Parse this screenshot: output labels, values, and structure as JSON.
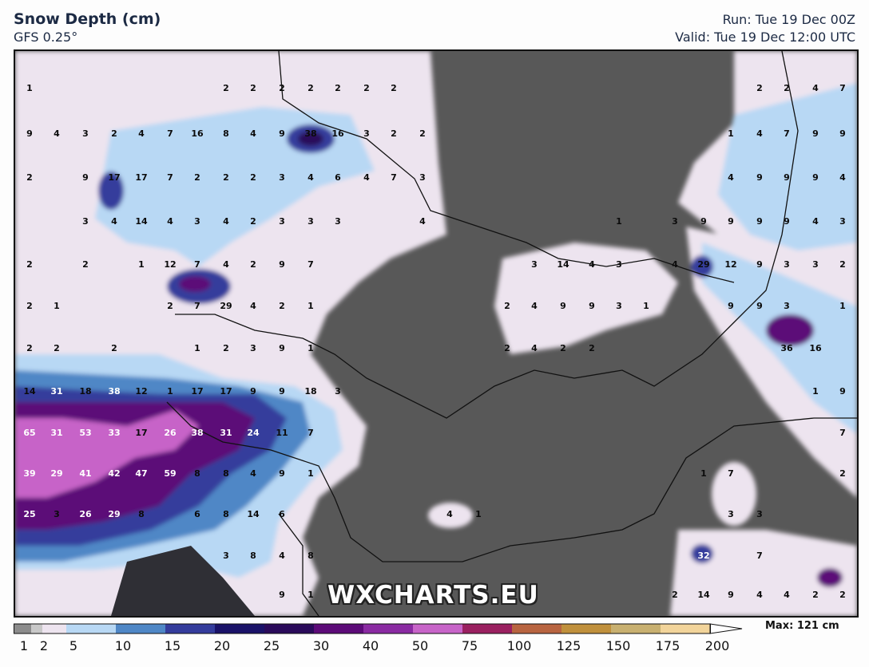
{
  "header": {
    "title": "Snow Depth (cm)",
    "model": "GFS 0.25°",
    "run": "Run: Tue 19 Dec 00Z",
    "valid": "Valid: Tue 19 Dec 12:00 UTC"
  },
  "watermark": "WXCHARTS.EU",
  "legend": {
    "max_label": "Max: 121 cm",
    "ticks": [
      "1",
      "2",
      "5",
      "10",
      "15",
      "20",
      "25",
      "30",
      "40",
      "50",
      "75",
      "100",
      "125",
      "150",
      "175",
      "200"
    ],
    "colors": [
      "#8c8c8c",
      "#c8c8c8",
      "#ede4ef",
      "#b8d8f4",
      "#4f87c6",
      "#343c9c",
      "#1a1268",
      "#2a0a5a",
      "#5c0a78",
      "#8a2aa2",
      "#c764c8",
      "#9a2060",
      "#b86440",
      "#c0903c",
      "#c8b070",
      "#f2d49a"
    ]
  },
  "map": {
    "background_color": "#585858",
    "station_values": [
      {
        "row": "r1",
        "values": [
          "1",
          "2",
          "2",
          "2",
          "2",
          "2",
          "2",
          "2",
          "2",
          "2",
          "4",
          "7"
        ]
      },
      {
        "row": "r2",
        "values": [
          "9",
          "4",
          "3",
          "2",
          "4",
          "7",
          "16",
          "8",
          "4",
          "9",
          "38",
          "16",
          "3",
          "2",
          "2",
          "1",
          "4",
          "7",
          "9",
          "9"
        ]
      },
      {
        "row": "r3",
        "values": [
          "2",
          "9",
          "17",
          "17",
          "7",
          "2",
          "2",
          "2",
          "3",
          "4",
          "6",
          "4",
          "7",
          "3",
          "4",
          "9",
          "9",
          "9",
          "4"
        ]
      },
      {
        "row": "r4",
        "values": [
          "3",
          "4",
          "14",
          "4",
          "3",
          "4",
          "2",
          "3",
          "3",
          "3",
          "4",
          "1",
          "3",
          "9",
          "9",
          "9",
          "9",
          "4",
          "3"
        ]
      },
      {
        "row": "r5",
        "values": [
          "2",
          "2",
          "1",
          "12",
          "7",
          "4",
          "2",
          "9",
          "7",
          "3",
          "14",
          "4",
          "3",
          "4",
          "29",
          "12",
          "9",
          "3",
          "3",
          "2"
        ]
      },
      {
        "row": "r6",
        "values": [
          "2",
          "1",
          "2",
          "7",
          "29",
          "4",
          "2",
          "1",
          "2",
          "4",
          "9",
          "9",
          "3",
          "1",
          "9",
          "9",
          "3",
          "1"
        ]
      },
      {
        "row": "r7",
        "values": [
          "2",
          "2",
          "2",
          "1",
          "2",
          "3",
          "9",
          "1",
          "2",
          "4",
          "2",
          "2",
          "36",
          "16"
        ]
      },
      {
        "row": "r8",
        "values": [
          "14",
          "31",
          "18",
          "38",
          "12",
          "1",
          "17",
          "17",
          "9",
          "9",
          "18",
          "3",
          "1",
          "9"
        ]
      },
      {
        "row": "r9",
        "values": [
          "65",
          "31",
          "53",
          "33",
          "17",
          "26",
          "38",
          "31",
          "24",
          "11",
          "7",
          "7"
        ]
      },
      {
        "row": "r10",
        "values": [
          "39",
          "29",
          "41",
          "42",
          "47",
          "59",
          "8",
          "8",
          "4",
          "9",
          "1",
          "1",
          "7",
          "2"
        ]
      },
      {
        "row": "r11",
        "values": [
          "25",
          "3",
          "26",
          "29",
          "8",
          "6",
          "8",
          "14",
          "6",
          "4",
          "1",
          "3",
          "3"
        ]
      },
      {
        "row": "r12",
        "values": [
          "3",
          "8",
          "4",
          "8",
          "32",
          "7"
        ]
      },
      {
        "row": "r13",
        "values": [
          "9",
          "1",
          "2",
          "14",
          "9",
          "4",
          "4",
          "2",
          "2"
        ]
      }
    ]
  }
}
